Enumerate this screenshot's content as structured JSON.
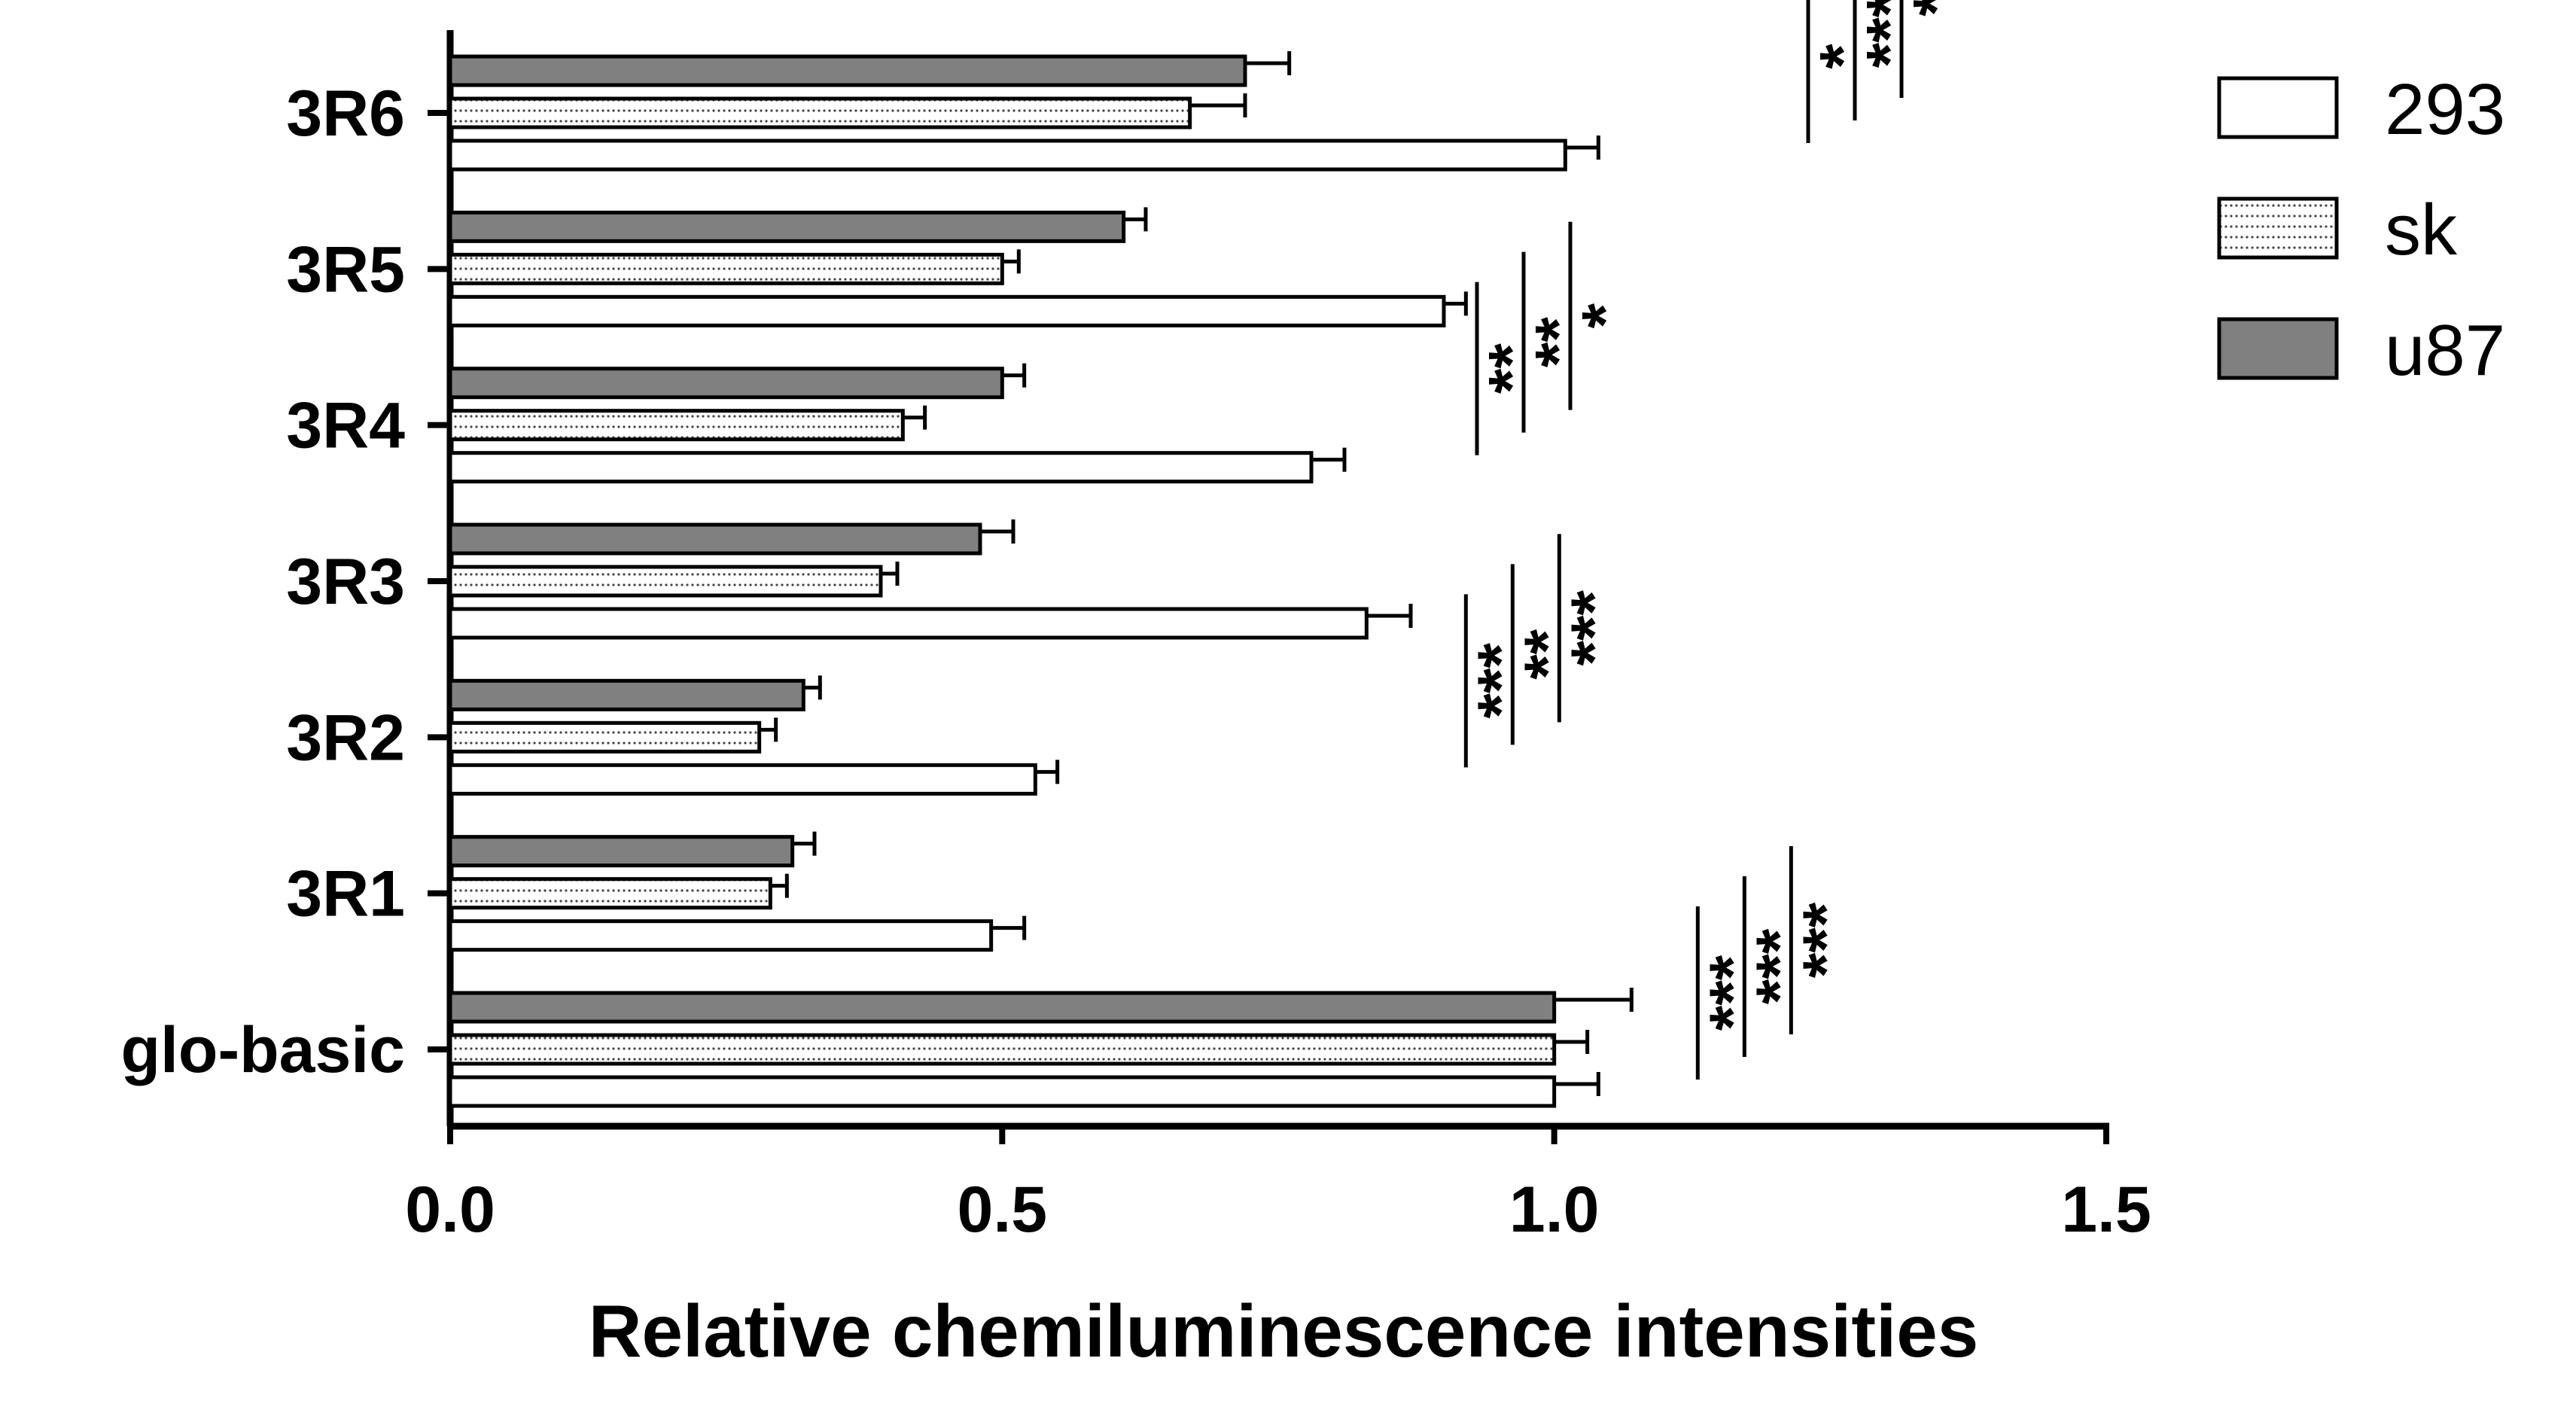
{
  "chart_data": {
    "type": "bar",
    "orientation": "horizontal",
    "title": "",
    "xlabel": "Relative chemiluminescence intensities",
    "ylabel": "",
    "xlim": [
      0,
      1.5
    ],
    "xticks": [
      "0.0",
      "0.5",
      "1.0",
      "1.5"
    ],
    "grid": false,
    "legend_position": "top-right",
    "categories": [
      "glo-basic",
      "3R1",
      "3R2",
      "3R3",
      "3R4",
      "3R5",
      "3R6"
    ],
    "series": [
      {
        "name": "293",
        "fill": "#ffffff",
        "pattern": "solid-white",
        "values": [
          1.0,
          0.49,
          0.53,
          0.83,
          0.78,
          0.9,
          1.01
        ],
        "errors": [
          0.04,
          0.03,
          0.02,
          0.04,
          0.03,
          0.02,
          0.03
        ]
      },
      {
        "name": "sk",
        "fill": "#ffffff",
        "pattern": "dotted",
        "values": [
          1.0,
          0.29,
          0.28,
          0.39,
          0.41,
          0.5,
          0.67
        ],
        "errors": [
          0.03,
          0.015,
          0.015,
          0.015,
          0.02,
          0.015,
          0.05
        ]
      },
      {
        "name": "u87",
        "fill": "#808080",
        "pattern": "solid-gray",
        "values": [
          1.0,
          0.31,
          0.32,
          0.48,
          0.5,
          0.61,
          0.72
        ],
        "errors": [
          0.07,
          0.02,
          0.015,
          0.03,
          0.02,
          0.02,
          0.04
        ]
      }
    ],
    "annotations": [
      {
        "category": "glo-basic",
        "marks": [
          "***",
          "***",
          "***"
        ],
        "x": 1.13
      },
      {
        "category": "3R2",
        "marks": [
          "***",
          "**",
          "***"
        ],
        "x": 0.92
      },
      {
        "category": "3R4",
        "marks": [
          "**",
          "**",
          "*"
        ],
        "x": 0.93
      },
      {
        "category": "3R6",
        "marks": [
          "*",
          "***",
          "*"
        ],
        "x": 1.23
      }
    ]
  }
}
